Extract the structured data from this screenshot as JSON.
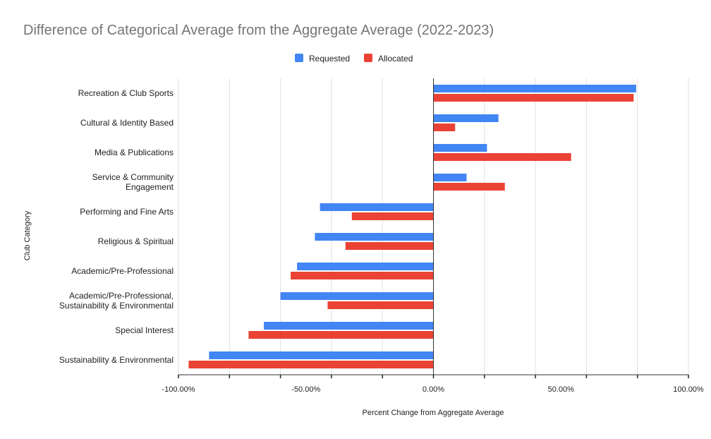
{
  "chart_data": {
    "type": "bar",
    "orientation": "horizontal",
    "title": "Difference of Categorical Average from the Aggregate Average (2022-2023)",
    "xlabel": "Percent Change from Aggregate Average",
    "ylabel": "Club Category",
    "xlim": [
      -100,
      100
    ],
    "x_ticks": [
      -100,
      -50,
      0,
      50,
      100
    ],
    "x_tick_labels": [
      "-100.00%",
      "-50.00%",
      "0.00%",
      "50.00%",
      "100.00%"
    ],
    "grid": true,
    "legend_position": "top",
    "categories": [
      [
        "Recreation & Club Sports"
      ],
      [
        "Cultural & Identity Based"
      ],
      [
        "Media & Publications"
      ],
      [
        "Service & Community",
        "Engagement"
      ],
      [
        "Performing and Fine Arts"
      ],
      [
        "Religious & Spiritual"
      ],
      [
        "Academic/Pre-Professional"
      ],
      [
        "Academic/Pre-Professional,",
        "Sustainability & Environmental"
      ],
      [
        "Special Interest"
      ],
      [
        "Sustainability & Environmental"
      ]
    ],
    "series": [
      {
        "name": "Requested",
        "color": "#4285f4",
        "values": [
          79.5,
          25.5,
          21,
          13,
          -44.5,
          -46.5,
          -53.5,
          -60,
          -66.5,
          -88
        ]
      },
      {
        "name": "Allocated",
        "color": "#ea4335",
        "values": [
          78.5,
          8.5,
          54,
          28,
          -32,
          -34.5,
          -56,
          -41.5,
          -72.5,
          -96
        ]
      }
    ]
  }
}
